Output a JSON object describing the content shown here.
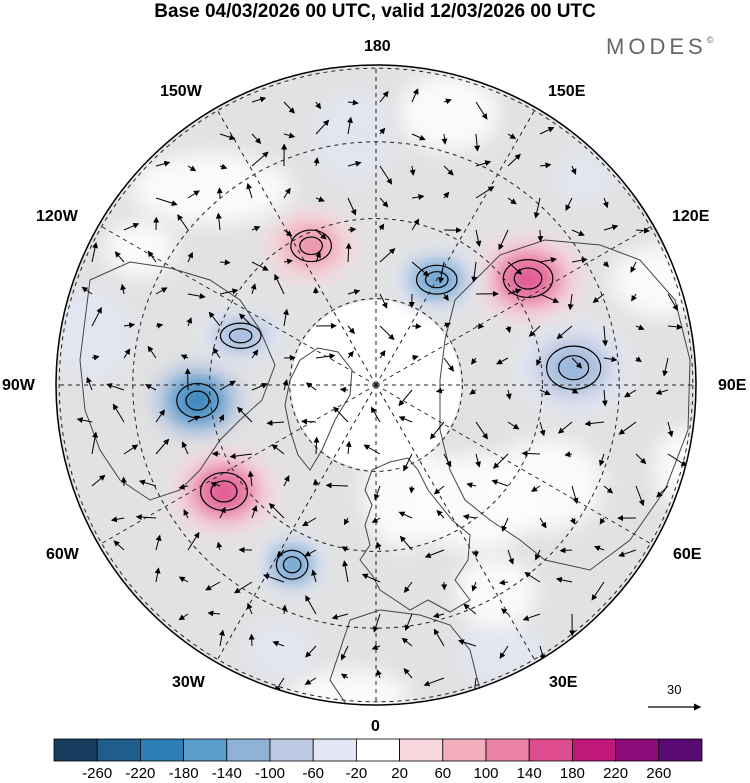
{
  "title": "Base 04/03/2026 00 UTC, valid 12/03/2026 00 UTC",
  "brand": {
    "name": "MODES",
    "mark": "©"
  },
  "longitude_labels": {
    "lon_180": "180",
    "lon_150e": "150E",
    "lon_120e": "120E",
    "lon_90e": "90E",
    "lon_60e": "60E",
    "lon_30e": "30E",
    "lon_0": "0",
    "lon_30w": "30W",
    "lon_60w": "60W",
    "lon_90w": "90W",
    "lon_120w": "120W",
    "lon_150w": "150W"
  },
  "reference_vector": {
    "label": "30"
  },
  "colorbar": {
    "labels": [
      "-260",
      "-220",
      "-180",
      "-140",
      "-100",
      "-60",
      "-20",
      "20",
      "60",
      "100",
      "140",
      "180",
      "220",
      "260"
    ],
    "colors": [
      "#173d5f",
      "#1e5d8c",
      "#2f7db5",
      "#5a9ccb",
      "#8fb2d7",
      "#bdc8e3",
      "#e3e6f3",
      "#ffffff",
      "#f8d6dd",
      "#f2aebd",
      "#ea82a5",
      "#de4d90",
      "#c0187a",
      "#8b0c78",
      "#5a0a73"
    ]
  },
  "anomalies": [
    {
      "lon": -85,
      "r": 0.56,
      "value": -200,
      "rx": 46,
      "ry": 38
    },
    {
      "lon": -55,
      "r": 0.58,
      "value": 180,
      "rx": 52,
      "ry": 42
    },
    {
      "lon": -25,
      "r": 0.62,
      "value": -160,
      "rx": 35,
      "ry": 32
    },
    {
      "lon": 40,
      "r": 0.48,
      "value": 60,
      "rx": 60,
      "ry": 48
    },
    {
      "lon": 15,
      "r": 0.35,
      "value": 60,
      "rx": 40,
      "ry": 55
    },
    {
      "lon": 60,
      "r": 0.62,
      "value": 60,
      "rx": 55,
      "ry": 45
    },
    {
      "lon": 95,
      "r": 0.62,
      "value": -120,
      "rx": 60,
      "ry": 48
    },
    {
      "lon": 125,
      "r": 0.58,
      "value": 180,
      "rx": 55,
      "ry": 42
    },
    {
      "lon": 150,
      "r": 0.38,
      "value": -160,
      "rx": 45,
      "ry": 32
    },
    {
      "lon": 165,
      "r": 0.88,
      "value": 60,
      "rx": 50,
      "ry": 38
    },
    {
      "lon": 135,
      "r": 0.92,
      "value": -60,
      "rx": 30,
      "ry": 28
    },
    {
      "lon": -175,
      "r": 0.78,
      "value": -60,
      "rx": 40,
      "ry": 48
    },
    {
      "lon": -155,
      "r": 0.48,
      "value": 140,
      "rx": 45,
      "ry": 35
    },
    {
      "lon": -140,
      "r": 0.8,
      "value": 60,
      "rx": 80,
      "ry": 35
    },
    {
      "lon": -110,
      "r": 0.45,
      "value": -100,
      "rx": 45,
      "ry": 28
    },
    {
      "lon": -120,
      "r": 0.85,
      "value": 60,
      "rx": 35,
      "ry": 28
    },
    {
      "lon": 25,
      "r": 0.92,
      "value": -60,
      "rx": 45,
      "ry": 35
    },
    {
      "lon": -5,
      "r": 0.98,
      "value": 60,
      "rx": 60,
      "ry": 28
    },
    {
      "lon": 75,
      "r": 1.0,
      "value": 60,
      "rx": 30,
      "ry": 40
    },
    {
      "lon": 110,
      "r": 0.95,
      "value": 60,
      "rx": 50,
      "ry": 35
    },
    {
      "lon": 30,
      "r": 0.75,
      "value": 60,
      "rx": 40,
      "ry": 35
    },
    {
      "lon": -100,
      "r": 0.9,
      "value": -60,
      "rx": 40,
      "ry": 50
    },
    {
      "lon": -20,
      "r": 0.88,
      "value": -60,
      "rx": 35,
      "ry": 30
    }
  ]
}
